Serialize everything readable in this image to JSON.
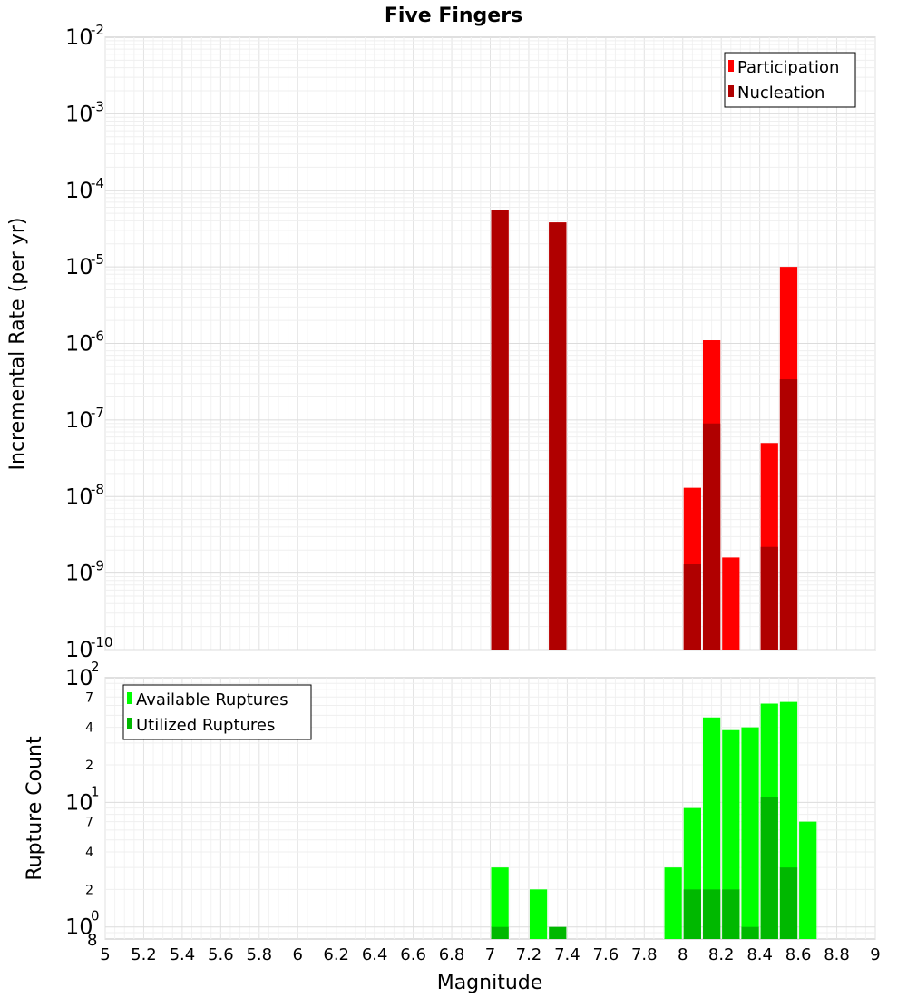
{
  "chart_data": [
    {
      "type": "bar",
      "title": "Five Fingers",
      "ylabel": "Incremental Rate (per yr)",
      "y_scale": "log",
      "ylim": [
        1e-10,
        0.01
      ],
      "xlim": [
        5,
        9
      ],
      "bin_width": 0.1,
      "legend_position": "top-right",
      "series": [
        {
          "name": "Participation",
          "color": "#ff0000",
          "x": [
            7.05,
            7.35,
            8.05,
            8.15,
            8.25,
            8.45,
            8.55
          ],
          "values": [
            5.5e-05,
            3.8e-05,
            1.3e-08,
            1.1e-06,
            1.6e-09,
            5e-08,
            1e-05
          ]
        },
        {
          "name": "Nucleation",
          "color": "#b00000",
          "x": [
            7.05,
            7.35,
            8.05,
            8.15,
            8.45,
            8.55
          ],
          "values": [
            5.5e-05,
            3.8e-05,
            1.3e-09,
            9e-08,
            2.2e-09,
            3.4e-07
          ]
        }
      ]
    },
    {
      "type": "bar",
      "ylabel": "Rupture Count",
      "xlabel": "Magnitude",
      "y_scale": "log",
      "ylim": [
        0.8,
        100
      ],
      "xlim": [
        5,
        9
      ],
      "bin_width": 0.1,
      "legend_position": "top-left",
      "series": [
        {
          "name": "Available Ruptures",
          "color": "#00ff00",
          "x": [
            7.05,
            7.25,
            7.95,
            8.05,
            8.15,
            8.25,
            8.35,
            8.45,
            8.55,
            8.65
          ],
          "values": [
            3,
            2,
            3,
            9,
            48,
            38,
            40,
            62,
            64,
            7
          ]
        },
        {
          "name": "Utilized Ruptures",
          "color": "#00b800",
          "x": [
            7.05,
            7.35,
            8.05,
            8.15,
            8.25,
            8.35,
            8.45,
            8.55
          ],
          "values": [
            1,
            1,
            2,
            2,
            2,
            1,
            11,
            3
          ]
        }
      ]
    }
  ],
  "x_ticks": [
    "5",
    "5.2",
    "5.4",
    "5.6",
    "5.8",
    "6",
    "6.2",
    "6.4",
    "6.6",
    "6.8",
    "7",
    "7.2",
    "7.4",
    "7.6",
    "7.8",
    "8",
    "8.2",
    "8.4",
    "8.6",
    "8.8",
    "9"
  ],
  "top_axis": {
    "tick_base": "10",
    "tick_exponents": [
      "-2",
      "-3",
      "-4",
      "-5",
      "-6",
      "-7",
      "-8",
      "-9",
      "-10"
    ]
  },
  "bottom_axis": {
    "tick_base": "10",
    "major_exponents": [
      "2",
      "1",
      "0"
    ],
    "minor_labels": [
      "7",
      "4",
      "2",
      "7",
      "4",
      "2"
    ],
    "bottom_label": "8"
  }
}
